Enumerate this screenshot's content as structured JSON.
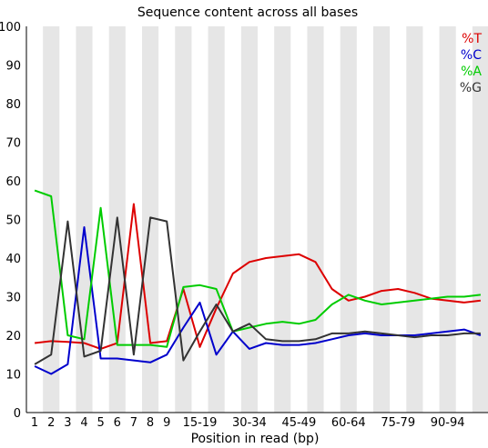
{
  "chart_data": {
    "type": "line",
    "title": "Sequence content across all bases",
    "xlabel": "Position in read (bp)",
    "ylabel": "",
    "ylim": [
      0,
      100
    ],
    "yticks": [
      "0",
      "10",
      "20",
      "30",
      "40",
      "50",
      "60",
      "70",
      "80",
      "90",
      "100"
    ],
    "categories": [
      "1",
      "2",
      "3",
      "4",
      "5",
      "6",
      "7",
      "8",
      "9",
      "10-14",
      "15-19",
      "20-24",
      "25-29",
      "30-34",
      "35-39",
      "40-44",
      "45-49",
      "50-54",
      "55-59",
      "60-64",
      "65-69",
      "70-74",
      "75-79",
      "80-84",
      "85-89",
      "90-94",
      "95-99",
      "100-104"
    ],
    "xtick_labels": [
      "1",
      "2",
      "3",
      "4",
      "5",
      "6",
      "7",
      "8",
      "9",
      "15-19",
      "30-34",
      "45-49",
      "60-64",
      "75-79",
      "90-94"
    ],
    "grid_stripes": true,
    "legend_position": "top-right",
    "series": [
      {
        "name": "%T",
        "color": "#dd0000",
        "values": [
          18.0,
          18.5,
          18.3,
          18.0,
          16.5,
          18.0,
          54.0,
          18.0,
          18.5,
          32.0,
          17.0,
          27.0,
          36.0,
          39.0,
          40.0,
          40.5,
          41.0,
          39.0,
          32.0,
          29.0,
          30.0,
          31.5,
          32.0,
          31.0,
          29.5,
          29.0,
          28.5,
          29.0
        ]
      },
      {
        "name": "%C",
        "color": "#0000cc",
        "values": [
          12.0,
          10.0,
          12.5,
          48.0,
          14.0,
          14.0,
          13.5,
          13.0,
          15.0,
          22.0,
          28.5,
          15.0,
          21.0,
          16.5,
          18.0,
          17.5,
          17.5,
          18.0,
          19.0,
          20.0,
          20.5,
          20.0,
          20.0,
          20.0,
          20.5,
          21.0,
          21.5,
          20.0
        ]
      },
      {
        "name": "%A",
        "color": "#00cc00",
        "values": [
          57.5,
          56.0,
          20.0,
          19.0,
          53.0,
          17.5,
          17.5,
          17.5,
          17.0,
          32.5,
          33.0,
          32.0,
          21.0,
          22.0,
          23.0,
          23.5,
          23.0,
          24.0,
          28.0,
          30.5,
          29.0,
          28.0,
          28.5,
          29.0,
          29.5,
          30.0,
          30.0,
          30.5
        ]
      },
      {
        "name": "%G",
        "color": "#333333",
        "values": [
          12.5,
          15.0,
          49.5,
          14.5,
          16.0,
          50.5,
          15.0,
          50.5,
          49.5,
          13.5,
          21.0,
          28.0,
          21.0,
          23.0,
          19.0,
          18.5,
          18.5,
          19.0,
          20.5,
          20.5,
          21.0,
          20.5,
          20.0,
          19.5,
          20.0,
          20.0,
          20.5,
          20.5
        ]
      }
    ]
  }
}
